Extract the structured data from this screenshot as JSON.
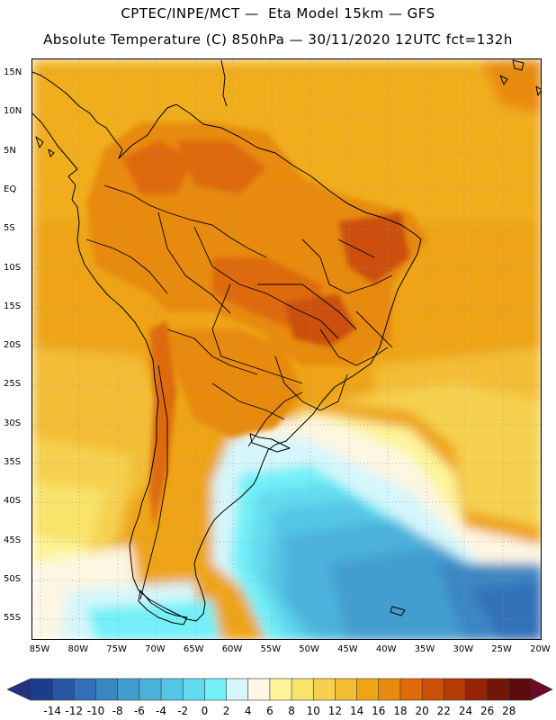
{
  "header": {
    "line1": "CPTEC/INPE/MCT —  Eta Model 15km — GFS",
    "line2": "Absolute Temperature (C) 850hPa — 30/11/2020 12UTC fct=132h"
  },
  "map": {
    "lat_labels": [
      "15N",
      "10N",
      "5N",
      "EQ",
      "5S",
      "10S",
      "15S",
      "20S",
      "25S",
      "30S",
      "35S",
      "40S",
      "45S",
      "50S",
      "55S"
    ],
    "lon_labels": [
      "85W",
      "80W",
      "75W",
      "70W",
      "65W",
      "60W",
      "55W",
      "50W",
      "45W",
      "40W",
      "35W",
      "30W",
      "25W",
      "20W"
    ],
    "grid": true
  },
  "colorbar": {
    "labels": [
      "-14",
      "-12",
      "-10",
      "-8",
      "-6",
      "-4",
      "-2",
      "0",
      "2",
      "4",
      "6",
      "8",
      "10",
      "12",
      "14",
      "16",
      "18",
      "20",
      "22",
      "24",
      "26",
      "28"
    ],
    "colors": [
      "#1e3c8c",
      "#2a55a4",
      "#3370b8",
      "#3a86c3",
      "#429dcf",
      "#4bb2db",
      "#55c6e6",
      "#62dbef",
      "#74f0f8",
      "#d6f6fb",
      "#fdf6e2",
      "#fdf49a",
      "#f9e36b",
      "#f6d150",
      "#f3bd34",
      "#eea416",
      "#e88a10",
      "#de6a0a",
      "#cc4f08",
      "#b43a06",
      "#952506",
      "#721708",
      "#5a0b0e"
    ],
    "under_color": "#24317e",
    "over_color": "#6a0b2a"
  }
}
